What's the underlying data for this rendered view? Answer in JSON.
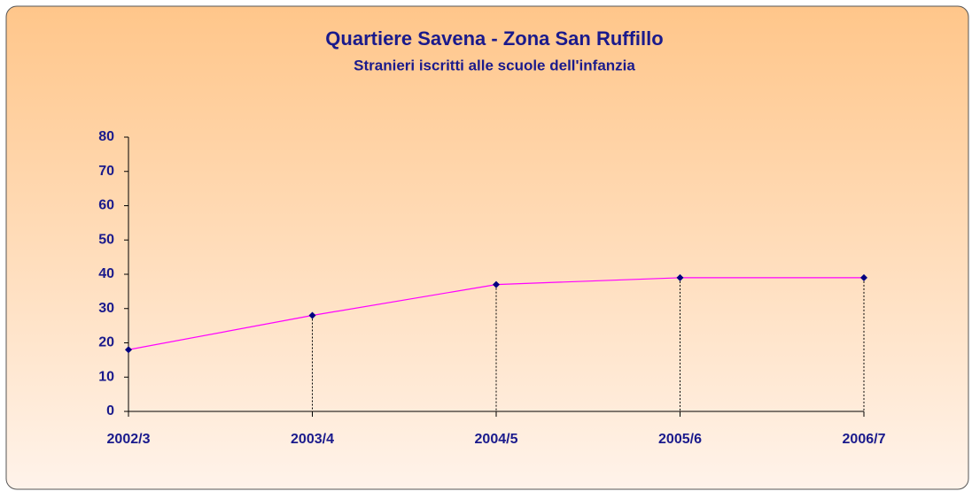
{
  "chart_data": {
    "type": "line",
    "title": "Quartiere Savena - Zona San Ruffillo",
    "subtitle": "Stranieri iscritti alle scuole dell'infanzia",
    "categories": [
      "2002/3",
      "2003/4",
      "2004/5",
      "2005/6",
      "2006/7"
    ],
    "series": [
      {
        "name": "Stranieri",
        "color": "#ff00ff",
        "marker_color": "#000080",
        "values": [
          18,
          28,
          37,
          39,
          39
        ]
      }
    ],
    "ylim": [
      0,
      80
    ],
    "yticks": [
      0,
      10,
      20,
      30,
      40,
      50,
      60,
      70,
      80
    ],
    "drop_lines": true,
    "legend": false
  }
}
